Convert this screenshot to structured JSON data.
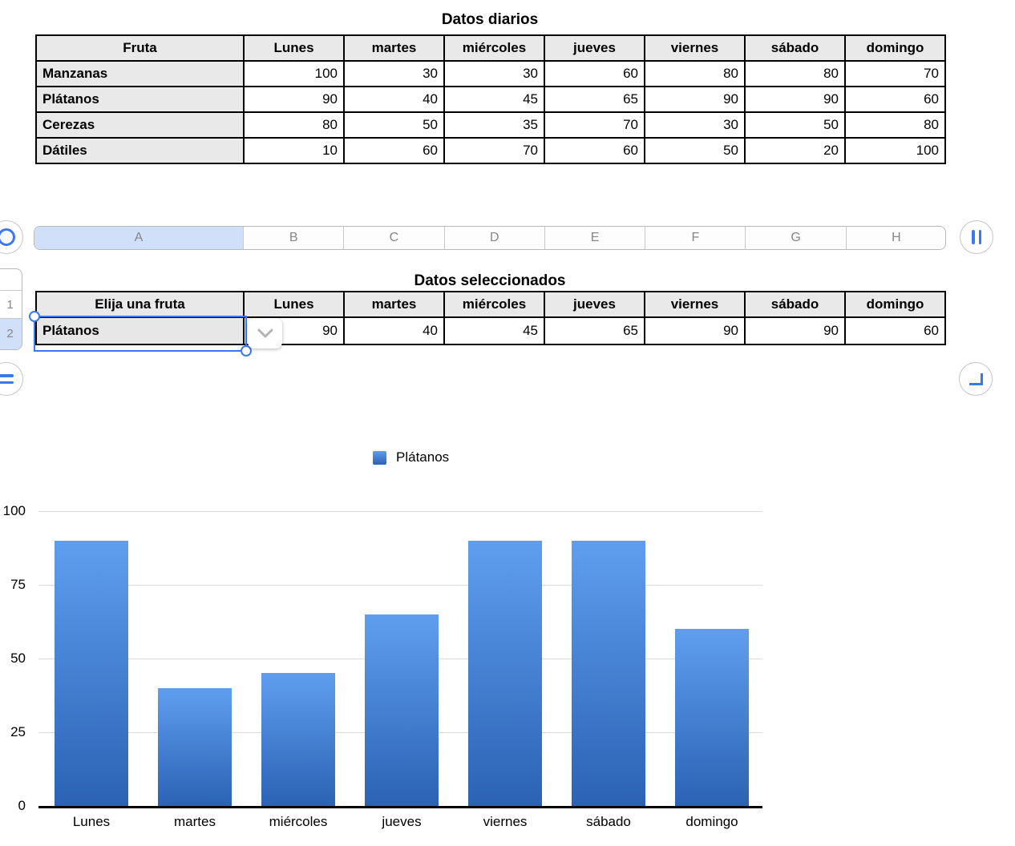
{
  "colors": {
    "accent_blue": "#3a78f2",
    "selection_fill": "#cfe0f8",
    "header_gray": "#e9e9e9",
    "bar_gradient_top": "#5f9eef",
    "bar_gradient_bottom": "#2b62b4",
    "gridline": "#dadada"
  },
  "icons": {
    "table_handle": "circle-ring",
    "add_row_handle": "two-horizontal-bars",
    "add_column_handle": "two-vertical-bars",
    "resize_handle": "corner-bracket",
    "fruit_dropdown": "chevron-down"
  },
  "daily_table": {
    "title": "Datos diarios",
    "columns": [
      "Fruta",
      "Lunes",
      "martes",
      "miércoles",
      "jueves",
      "viernes",
      "sábado",
      "domingo"
    ],
    "rows": [
      {
        "label": "Manzanas",
        "values": [
          100,
          30,
          30,
          60,
          80,
          80,
          70
        ]
      },
      {
        "label": "Plátanos",
        "values": [
          90,
          40,
          45,
          65,
          90,
          90,
          60
        ]
      },
      {
        "label": "Cerezas",
        "values": [
          80,
          50,
          35,
          70,
          30,
          50,
          80
        ]
      },
      {
        "label": "Dátiles",
        "values": [
          10,
          60,
          70,
          60,
          50,
          20,
          100
        ]
      }
    ]
  },
  "column_bar": {
    "letters": [
      "A",
      "B",
      "C",
      "D",
      "E",
      "F",
      "G",
      "H"
    ],
    "selected": "A"
  },
  "row_bar": {
    "numbers": [
      "1",
      "2"
    ],
    "selected": "2"
  },
  "selected_table": {
    "title": "Datos seleccionados",
    "columns": [
      "Elija una fruta",
      "Lunes",
      "martes",
      "miércoles",
      "jueves",
      "viernes",
      "sábado",
      "domingo"
    ],
    "row": {
      "label": "Plátanos",
      "values": [
        90,
        40,
        45,
        65,
        90,
        90,
        60
      ]
    }
  },
  "chart_data": {
    "type": "bar",
    "title": "",
    "categories": [
      "Lunes",
      "martes",
      "miércoles",
      "jueves",
      "viernes",
      "sábado",
      "domingo"
    ],
    "series": [
      {
        "name": "Plátanos",
        "values": [
          90,
          40,
          45,
          65,
          90,
          90,
          60
        ]
      }
    ],
    "xlabel": "",
    "ylabel": "",
    "ylim": [
      0,
      100
    ],
    "yticks": [
      0,
      25,
      50,
      75,
      100
    ],
    "grid": true,
    "legend_position": "top"
  }
}
